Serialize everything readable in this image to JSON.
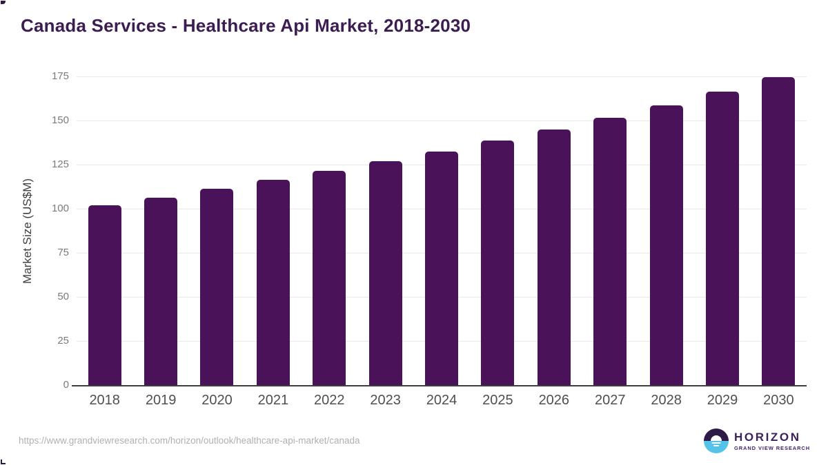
{
  "page": {
    "title": "Canada Services - Healthcare Api Market, 2018-2030"
  },
  "chart_data": {
    "type": "bar",
    "title": "Canada Services - Healthcare Api Market, 2018-2030",
    "categories": [
      "2018",
      "2019",
      "2020",
      "2021",
      "2022",
      "2023",
      "2024",
      "2025",
      "2026",
      "2027",
      "2028",
      "2029",
      "2030"
    ],
    "values": [
      102.0,
      106.4,
      111.4,
      116.5,
      121.6,
      126.9,
      132.3,
      138.6,
      144.8,
      151.4,
      158.7,
      166.3,
      174.5
    ],
    "xlabel": "",
    "ylabel": "Market Size (US$M)",
    "ylim": [
      0,
      175
    ],
    "y_ticks": [
      0,
      25,
      50,
      75,
      100,
      125,
      150,
      175
    ],
    "grid": "horizontal",
    "legend": false
  },
  "footer": {
    "source_url": "https://www.grandviewresearch.com/horizon/outlook/healthcare-api-market/canada",
    "logo": {
      "brand": "HORIZON",
      "sub_brand": "GRAND VIEW RESEARCH"
    }
  },
  "colors": {
    "title": "#3b1d52",
    "bar": "#4a1258",
    "gridline": "#e9e9e9",
    "axis_line": "#3d3d3d",
    "y_tick_text": "#7a7a7a",
    "x_tick_text": "#4f4f4f",
    "y_axis_title_text": "#3f3f3f",
    "url_text": "#b0b0b0",
    "logo_dark": "#2e1a47",
    "logo_blue": "#55c3e8",
    "logo_text": "#3a2158"
  }
}
